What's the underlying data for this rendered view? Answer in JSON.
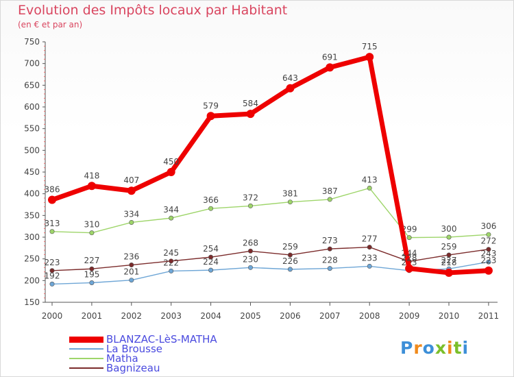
{
  "header": {
    "title": "Evolution des Impôts locaux par Habitant",
    "subtitle": "(en € et par an)"
  },
  "chart_data": {
    "type": "line",
    "title": "Evolution des Impôts locaux par Habitant",
    "subtitle": "(en € et par an)",
    "xlabel": "",
    "ylabel": "",
    "ylim": [
      150,
      750
    ],
    "yticks": [
      150,
      200,
      250,
      300,
      350,
      400,
      450,
      500,
      550,
      600,
      650,
      700,
      750
    ],
    "x": [
      "2000",
      "2001",
      "2002",
      "2003",
      "2004",
      "2005",
      "2006",
      "2007",
      "2008",
      "2009",
      "2010",
      "2011"
    ],
    "grid": false,
    "legend_position": "bottom-left",
    "series": [
      {
        "name": "La Brousse",
        "color": "#6ea6d6",
        "values": [
          192,
          195,
          201,
          222,
          224,
          230,
          226,
          228,
          233,
          223,
          227,
          243
        ]
      },
      {
        "name": "Bagnizeau",
        "color": "#7b2b2b",
        "values": [
          223,
          227,
          236,
          245,
          254,
          268,
          259,
          273,
          277,
          244,
          259,
          272
        ]
      },
      {
        "name": "Matha",
        "color": "#9ed56a",
        "values": [
          313,
          310,
          334,
          344,
          366,
          372,
          381,
          387,
          413,
          299,
          300,
          306
        ]
      },
      {
        "name": "BLANZAC-LèS-MATHA",
        "color": "#ee0000",
        "values": [
          386,
          418,
          407,
          450,
          579,
          584,
          643,
          691,
          715,
          228,
          218,
          223
        ]
      }
    ]
  },
  "legend": [
    {
      "label": "BLANZAC-LèS-MATHA",
      "color": "#ee0000"
    },
    {
      "label": "La Brousse",
      "color": "#6ea6d6"
    },
    {
      "label": "Matha",
      "color": "#9ed56a"
    },
    {
      "label": "Bagnizeau",
      "color": "#7b2b2b"
    }
  ],
  "logo": {
    "letters": [
      "P",
      "r",
      "o",
      "x",
      "i",
      "t",
      "i"
    ],
    "colors": [
      "#3d8fd8",
      "#f08a1c",
      "#3d8fd8",
      "#7bbf2a",
      "#f08a1c",
      "#7bbf2a",
      "#3d8fd8"
    ]
  }
}
